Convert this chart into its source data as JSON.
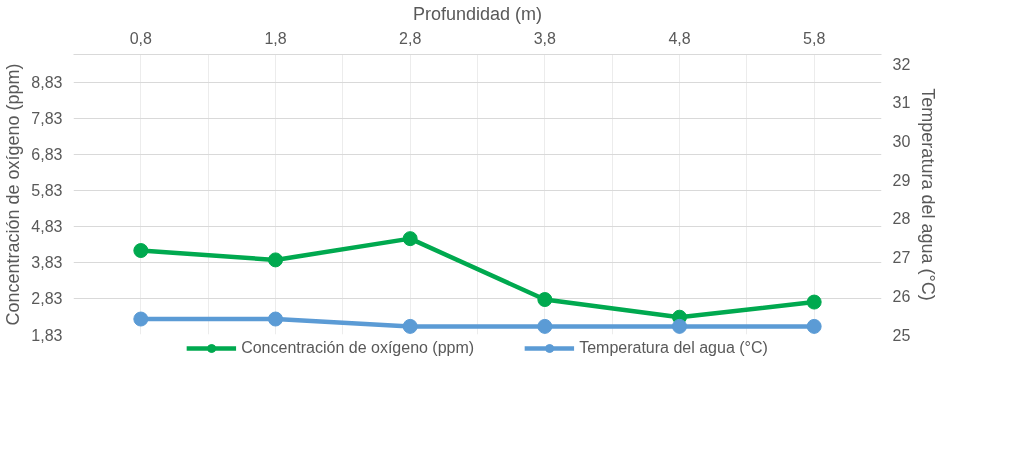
{
  "chart_data": {
    "type": "line",
    "xlabel": "Profundidad (m)",
    "ylabel": "Concentración de oxígeno (ppm)",
    "y2label": "Temperatura del agua (°C)",
    "categories": [
      "0,8",
      "1,8",
      "2,8",
      "3,8",
      "4,8",
      "5,8"
    ],
    "series": [
      {
        "name": "Concentración de oxígeno (ppm)",
        "color": "#00a94f",
        "values": [
          4.16,
          3.9,
          4.49,
          2.8,
          2.31,
          2.73
        ]
      },
      {
        "name": "Temperatura del agua (°C)",
        "color": "#5b9bd5",
        "values": [
          25.4,
          25.4,
          25.21,
          25.21,
          25.21,
          25.21
        ],
        "axis": "y2"
      }
    ],
    "ylim": [
      1.83,
      9.6
    ],
    "yticks": [
      {
        "value": 1.83,
        "label": "1,83"
      },
      {
        "value": 2.83,
        "label": "2,83"
      },
      {
        "value": 3.83,
        "label": "3,83"
      },
      {
        "value": 4.83,
        "label": "4,83"
      },
      {
        "value": 5.83,
        "label": "5,83"
      },
      {
        "value": 6.83,
        "label": "6,83"
      },
      {
        "value": 7.83,
        "label": "7,83"
      },
      {
        "value": 8.83,
        "label": "8,83"
      }
    ],
    "y2lim": [
      25,
      32.24
    ],
    "y2ticks": [
      25,
      26,
      27,
      28,
      29,
      30,
      31,
      32
    ],
    "grid": true,
    "legend": "bottom",
    "marker": "circle",
    "line_style": "solid"
  }
}
